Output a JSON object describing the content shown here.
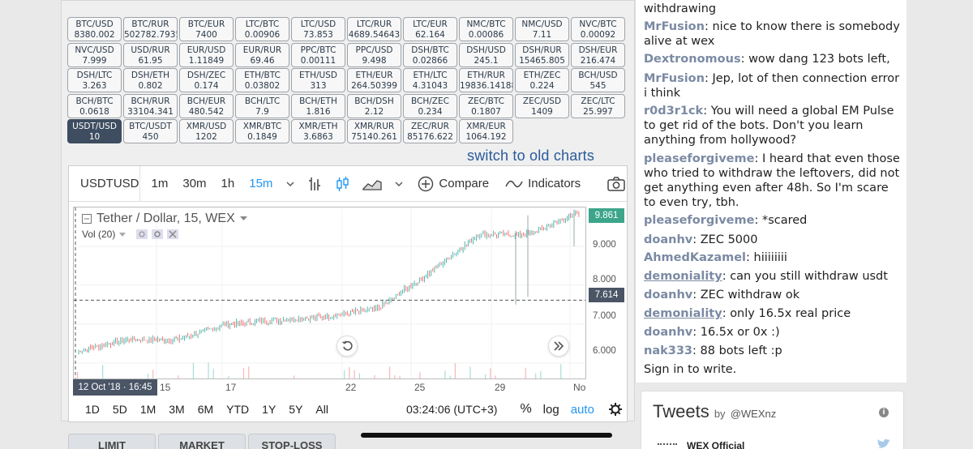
{
  "tickers": [
    {
      "pair": "BTC/USD",
      "price": "8380.002"
    },
    {
      "pair": "BTC/RUR",
      "price": "502782.7935"
    },
    {
      "pair": "BTC/EUR",
      "price": "7400"
    },
    {
      "pair": "LTC/BTC",
      "price": "0.00906"
    },
    {
      "pair": "LTC/USD",
      "price": "73.853"
    },
    {
      "pair": "LTC/RUR",
      "price": "4689.54643"
    },
    {
      "pair": "LTC/EUR",
      "price": "62.164"
    },
    {
      "pair": "NMC/BTC",
      "price": "0.00086"
    },
    {
      "pair": "NMC/USD",
      "price": "7.11"
    },
    {
      "pair": "NVC/BTC",
      "price": "0.00092"
    },
    {
      "pair": "NVC/USD",
      "price": "7.999"
    },
    {
      "pair": "USD/RUR",
      "price": "61.95"
    },
    {
      "pair": "EUR/USD",
      "price": "1.11849"
    },
    {
      "pair": "EUR/RUR",
      "price": "69.46"
    },
    {
      "pair": "PPC/BTC",
      "price": "0.00111"
    },
    {
      "pair": "PPC/USD",
      "price": "9.498"
    },
    {
      "pair": "DSH/BTC",
      "price": "0.02866"
    },
    {
      "pair": "DSH/USD",
      "price": "245.1"
    },
    {
      "pair": "DSH/RUR",
      "price": "15465.805"
    },
    {
      "pair": "DSH/EUR",
      "price": "216.474"
    },
    {
      "pair": "DSH/LTC",
      "price": "3.263"
    },
    {
      "pair": "DSH/ETH",
      "price": "0.802"
    },
    {
      "pair": "DSH/ZEC",
      "price": "0.174"
    },
    {
      "pair": "ETH/BTC",
      "price": "0.03802"
    },
    {
      "pair": "ETH/USD",
      "price": "313"
    },
    {
      "pair": "ETH/EUR",
      "price": "264.50399"
    },
    {
      "pair": "ETH/LTC",
      "price": "4.31043"
    },
    {
      "pair": "ETH/RUR",
      "price": "19836.14188"
    },
    {
      "pair": "ETH/ZEC",
      "price": "0.224"
    },
    {
      "pair": "BCH/USD",
      "price": "545"
    },
    {
      "pair": "BCH/BTC",
      "price": "0.0618"
    },
    {
      "pair": "BCH/RUR",
      "price": "33104.341"
    },
    {
      "pair": "BCH/EUR",
      "price": "480.542"
    },
    {
      "pair": "BCH/LTC",
      "price": "7.9"
    },
    {
      "pair": "BCH/ETH",
      "price": "1.816"
    },
    {
      "pair": "BCH/DSH",
      "price": "2.12"
    },
    {
      "pair": "BCH/ZEC",
      "price": "0.234"
    },
    {
      "pair": "ZEC/BTC",
      "price": "0.1807"
    },
    {
      "pair": "ZEC/USD",
      "price": "1409"
    },
    {
      "pair": "ZEC/LTC",
      "price": "25.997"
    },
    {
      "pair": "USDT/USD",
      "price": "10",
      "active": true
    },
    {
      "pair": "BTC/USDT",
      "price": "450"
    },
    {
      "pair": "XMR/USD",
      "price": "1202"
    },
    {
      "pair": "XMR/BTC",
      "price": "0.1849"
    },
    {
      "pair": "XMR/ETH",
      "price": "3.6863"
    },
    {
      "pair": "XMR/RUR",
      "price": "75140.261"
    },
    {
      "pair": "ZEC/RUR",
      "price": "85176.622"
    },
    {
      "pair": "XMR/EUR",
      "price": "1064.192"
    }
  ],
  "switch_link": "switch to old charts",
  "chart": {
    "symbol": "USDTUSD",
    "intervals": [
      "1m",
      "30m",
      "1h",
      "15m"
    ],
    "selected_interval": "15m",
    "compare_label": "Compare",
    "indicators_label": "Indicators",
    "legend_title": "Tether / Dollar, 15, WEX",
    "volume_label": "Vol (20)",
    "date_badge": "12 Oct '18 · 16:45",
    "time_labels": [
      "15",
      "17",
      "22",
      "25",
      "29",
      "No"
    ],
    "price_labels": [
      "9.000",
      "8.000",
      "7.000",
      "6.000"
    ],
    "last_price": "9.861",
    "crosshair_price": "7.614",
    "ranges": [
      "1D",
      "5D",
      "1M",
      "3M",
      "6M",
      "YTD",
      "1Y",
      "5Y",
      "All"
    ],
    "clock": "03:24:06 (UTC+3)",
    "percent_label": "%",
    "log_label": "log",
    "auto_label": "auto",
    "colors": {
      "up": "#26a69a",
      "down": "#ef5350",
      "last_price": "#3ca58a",
      "crosshair_tag": "#4a5566"
    }
  },
  "chart_data": {
    "type": "candlestick",
    "title": "Tether / Dollar, 15, WEX",
    "x_ticks": [
      "15",
      "17",
      "22",
      "25",
      "29",
      "No"
    ],
    "y_ticks": [
      6.0,
      7.0,
      8.0,
      9.0
    ],
    "ylim": [
      5.6,
      10.0
    ],
    "last_value": 9.861,
    "crosshair_value": 7.614,
    "approx_trend": [
      {
        "x": "12 Oct",
        "y": 6.3
      },
      {
        "x": "15 Oct",
        "y": 6.6
      },
      {
        "x": "17 Oct",
        "y": 6.6
      },
      {
        "x": "20 Oct",
        "y": 7.0
      },
      {
        "x": "22 Oct",
        "y": 7.1
      },
      {
        "x": "25 Oct",
        "y": 7.2
      },
      {
        "x": "27 Oct",
        "y": 7.4
      },
      {
        "x": "29 Oct",
        "y": 8.3
      },
      {
        "x": "30 Oct",
        "y": 9.3
      },
      {
        "x": "31 Oct",
        "y": 9.3
      },
      {
        "x": "1 Nov",
        "y": 9.861
      }
    ]
  },
  "order_tabs": [
    "LIMIT",
    "MARKET",
    "STOP-LOSS"
  ],
  "chat": [
    {
      "user": "",
      "text": "withdrawing"
    },
    {
      "user": "MrFusion",
      "text": "nice to know there is somebody alive at wex"
    },
    {
      "user": "Dextronomous",
      "text": "wow dang 123 bots left,"
    },
    {
      "user": "MrFusion",
      "text": "Jep, lot of then connection error i think"
    },
    {
      "user": "r0d3r1ck",
      "text": "You will need a global EM Pulse to get rid of the bots. Don't you learn anything from hollywood?"
    },
    {
      "user": "pleaseforgiveme",
      "text": "I heard that even those who tried to withdraw the leftovers, did not get anything even after 48h. So I'm scare to even try, tbh."
    },
    {
      "user": "pleaseforgiveme",
      "text": "*scared"
    },
    {
      "user": "doanhv",
      "text": "ZEC 5000"
    },
    {
      "user": "AhmedKazamel",
      "text": "hiiiiiiii"
    },
    {
      "user": "demoniality",
      "text": "can you still withdraw usdt",
      "underlined": true
    },
    {
      "user": "doanhv",
      "text": "ZEC withdraw ok"
    },
    {
      "user": "demoniality",
      "text": "only 16.5x real price",
      "underlined": true
    },
    {
      "user": "doanhv",
      "text": "16.5x or 0x :)"
    },
    {
      "user": "nak333",
      "text": "88 bots left :p"
    },
    {
      "user": "",
      "text": "Sign in to write."
    }
  ],
  "tweets": {
    "title": "Tweets",
    "by": "by",
    "handle": "@WEXnz",
    "author": "WEX Official"
  }
}
